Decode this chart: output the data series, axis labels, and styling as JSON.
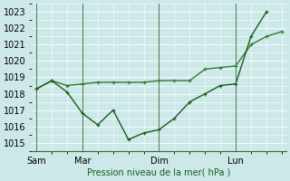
{
  "background_color": "#cce8e8",
  "grid_color": "#ffffff",
  "line_color_dark": "#1a5c1a",
  "line_color_light": "#2e7d2e",
  "ylabel": "Pression niveau de la mer( hPa )",
  "ylim": [
    1014.5,
    1023.5
  ],
  "yticks": [
    1015,
    1016,
    1017,
    1018,
    1019,
    1020,
    1021,
    1022,
    1023
  ],
  "xtick_labels": [
    "Sam",
    "Mar",
    "Dim",
    "Lun"
  ],
  "xtick_positions": [
    0,
    3,
    8,
    13
  ],
  "xlim": [
    -0.3,
    16.3
  ],
  "series1_x": [
    0,
    1,
    2,
    3,
    4,
    5,
    6,
    7,
    8,
    9,
    10,
    11,
    12,
    13,
    14,
    15
  ],
  "series1_y": [
    1018.3,
    1018.8,
    1018.1,
    1016.8,
    1016.1,
    1017.0,
    1015.2,
    1015.6,
    1015.8,
    1016.5,
    1017.5,
    1018.0,
    1018.5,
    1018.6,
    1021.5,
    1023.0
  ],
  "series2_x": [
    0,
    1,
    2,
    3,
    4,
    5,
    6,
    7,
    8,
    9,
    10,
    11,
    12,
    13,
    14,
    15,
    16
  ],
  "series2_y": [
    1018.3,
    1018.8,
    1018.5,
    1018.6,
    1018.7,
    1018.7,
    1018.7,
    1018.7,
    1018.8,
    1018.8,
    1018.8,
    1019.5,
    1019.6,
    1019.7,
    1021.0,
    1021.5,
    1021.8
  ],
  "marker_size": 2.5,
  "linewidth": 1.0
}
